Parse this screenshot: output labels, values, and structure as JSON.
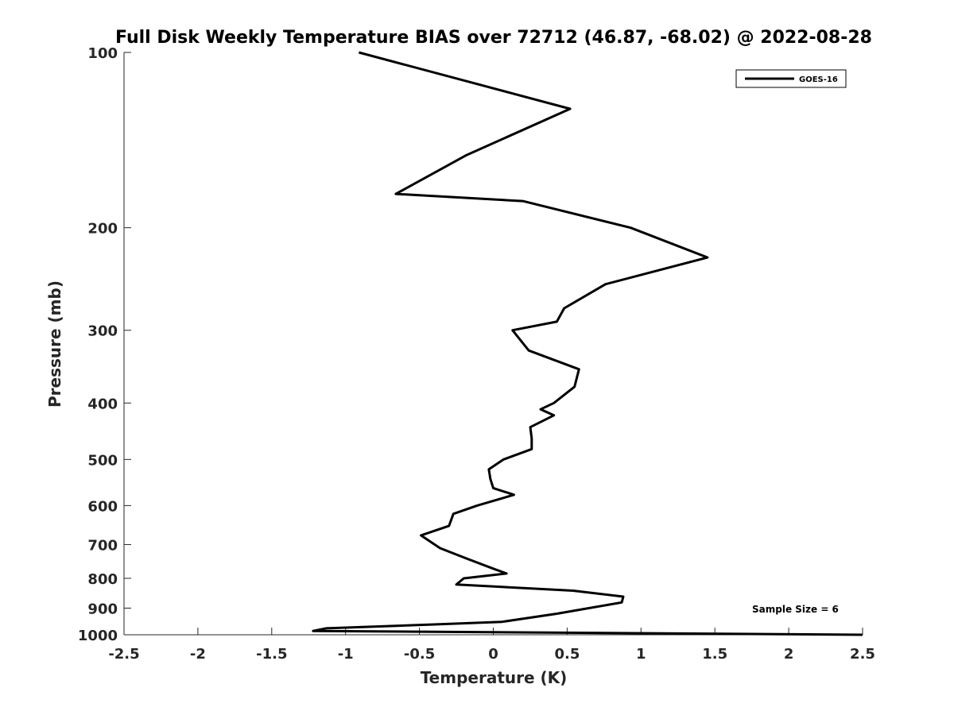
{
  "chart_data": {
    "type": "line",
    "title": "Full Disk Weekly Temperature BIAS over 72712 (46.87, -68.02) @ 2022-08-28",
    "xlabel": "Temperature (K)",
    "ylabel": "Pressure (mb)",
    "xlim": [
      -2.5,
      2.5
    ],
    "ylim": [
      100,
      1000
    ],
    "y_scale": "log",
    "y_reversed": true,
    "x_ticks": [
      -2.5,
      -2,
      -1.5,
      -1,
      -0.5,
      0,
      0.5,
      1,
      1.5,
      2,
      2.5
    ],
    "x_tick_labels": [
      "-2.5",
      "-2",
      "-1.5",
      "-1",
      "-0.5",
      "0",
      "0.5",
      "1",
      "1.5",
      "2",
      "2.5"
    ],
    "y_ticks": [
      100,
      200,
      300,
      400,
      500,
      600,
      700,
      800,
      900,
      1000
    ],
    "y_tick_labels": [
      "100",
      "200",
      "300",
      "400",
      "500",
      "600",
      "700",
      "800",
      "900",
      "1000"
    ],
    "grid": false,
    "legend_position": "top-right",
    "series": [
      {
        "name": "GOES-16",
        "color": "#000000",
        "temperature": [
          -0.91,
          0.52,
          -0.18,
          -0.66,
          0.2,
          0.93,
          1.45,
          0.76,
          0.48,
          0.43,
          0.13,
          0.24,
          0.58,
          0.55,
          0.41,
          0.32,
          0.41,
          0.25,
          0.26,
          0.26,
          0.07,
          -0.03,
          -0.02,
          0.0,
          0.14,
          -0.11,
          -0.27,
          -0.3,
          -0.49,
          -0.36,
          -0.18,
          0.0,
          0.09,
          -0.2,
          -0.25,
          0.54,
          0.88,
          0.87,
          0.43,
          0.06,
          -0.4,
          -1.13,
          -1.22,
          2.5
        ],
        "pressure": [
          100,
          125,
          150,
          175,
          180,
          200,
          225,
          250,
          275,
          290,
          300,
          325,
          350,
          375,
          400,
          410,
          420,
          440,
          460,
          480,
          500,
          520,
          540,
          560,
          575,
          600,
          620,
          650,
          675,
          710,
          740,
          770,
          785,
          800,
          820,
          840,
          860,
          880,
          920,
          950,
          960,
          975,
          985,
          1000
        ]
      }
    ],
    "annotations": [
      "Sample Size = 6"
    ]
  }
}
